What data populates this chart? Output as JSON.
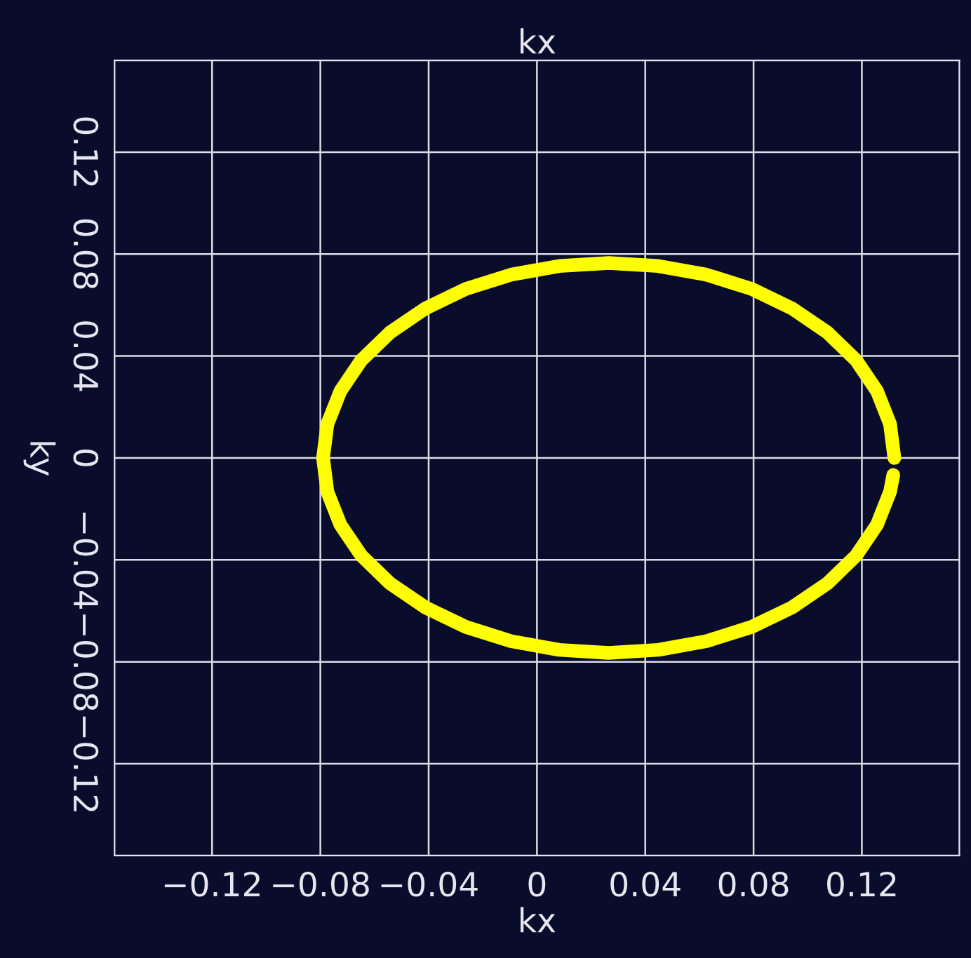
{
  "chart_data": {
    "type": "line",
    "title": "kx",
    "xlabel": "kx",
    "ylabel": "ky",
    "xlim": [
      -0.156,
      0.156
    ],
    "ylim": [
      -0.156,
      0.156
    ],
    "xticks": [
      {
        "value": -0.12,
        "label": "−0.12"
      },
      {
        "value": -0.08,
        "label": "−0.08"
      },
      {
        "value": -0.04,
        "label": "−0.04"
      },
      0,
      0.04,
      0.08,
      0.12
    ],
    "yticks": [
      {
        "value": -0.12,
        "label": "−0.12"
      },
      {
        "value": -0.08,
        "label": "−0.08"
      },
      {
        "value": -0.04,
        "label": "−0.04"
      },
      0,
      0.04,
      0.08,
      0.12
    ],
    "grid": true,
    "legend": false,
    "marker": "none",
    "line_style": "solid",
    "series": [
      {
        "color": "#ffff00",
        "x": [
          0.132,
          0.1304,
          0.1256,
          0.1179,
          0.1073,
          0.0943,
          0.0793,
          0.0626,
          0.0448,
          0.0265,
          0.0082,
          -0.0096,
          -0.0263,
          -0.0413,
          -0.0543,
          -0.0649,
          -0.0726,
          -0.0774,
          -0.079,
          -0.0774,
          -0.0726,
          -0.0649,
          -0.0543,
          -0.0413,
          -0.0263,
          -0.0096,
          0.0082,
          0.0265,
          0.0448,
          0.0626,
          0.0793,
          0.0943,
          0.1073,
          0.1179,
          0.1256,
          0.1304,
          0.1316
        ],
        "values": [
          0,
          0.0133,
          0.0262,
          0.0383,
          0.0492,
          0.0586,
          0.0663,
          0.0719,
          0.0753,
          0.0765,
          0.0753,
          0.0719,
          0.0663,
          0.0586,
          0.0492,
          0.0383,
          0.0262,
          0.0133,
          0,
          -0.0133,
          -0.0262,
          -0.0383,
          -0.0492,
          -0.0586,
          -0.0663,
          -0.0719,
          -0.0753,
          -0.0765,
          -0.0753,
          -0.0719,
          -0.0663,
          -0.0586,
          -0.0492,
          -0.0383,
          -0.0262,
          -0.0133,
          -0.0067
        ]
      }
    ]
  }
}
